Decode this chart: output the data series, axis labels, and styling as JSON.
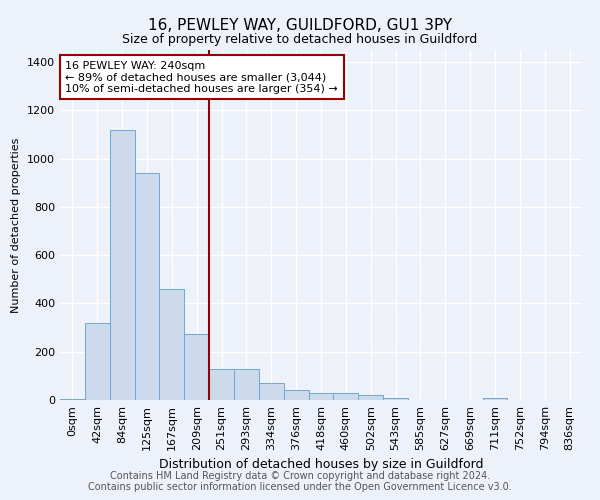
{
  "title": "16, PEWLEY WAY, GUILDFORD, GU1 3PY",
  "subtitle": "Size of property relative to detached houses in Guildford",
  "xlabel": "Distribution of detached houses by size in Guildford",
  "ylabel": "Number of detached properties",
  "footnote1": "Contains HM Land Registry data © Crown copyright and database right 2024.",
  "footnote2": "Contains public sector information licensed under the Open Government Licence v3.0.",
  "bar_labels": [
    "0sqm",
    "42sqm",
    "84sqm",
    "125sqm",
    "167sqm",
    "209sqm",
    "251sqm",
    "293sqm",
    "334sqm",
    "376sqm",
    "418sqm",
    "460sqm",
    "502sqm",
    "543sqm",
    "585sqm",
    "627sqm",
    "669sqm",
    "711sqm",
    "752sqm",
    "794sqm",
    "836sqm"
  ],
  "bar_values": [
    5,
    320,
    1120,
    940,
    460,
    275,
    130,
    130,
    70,
    40,
    30,
    30,
    20,
    10,
    0,
    0,
    0,
    10,
    0,
    0,
    0
  ],
  "bar_color": "#ccdaec",
  "bar_edge_color": "#6aaad4",
  "ylim": [
    0,
    1450
  ],
  "yticks": [
    0,
    200,
    400,
    600,
    800,
    1000,
    1200,
    1400
  ],
  "property_line_color": "#990000",
  "annotation_text": "16 PEWLEY WAY: 240sqm\n← 89% of detached houses are smaller (3,044)\n10% of semi-detached houses are larger (354) →",
  "annotation_box_color": "#990000",
  "background_color": "#edf2fa",
  "grid_color": "#ffffff",
  "title_fontsize": 11,
  "subtitle_fontsize": 9,
  "ylabel_fontsize": 8,
  "xlabel_fontsize": 9,
  "tick_fontsize": 8,
  "footnote_fontsize": 7
}
